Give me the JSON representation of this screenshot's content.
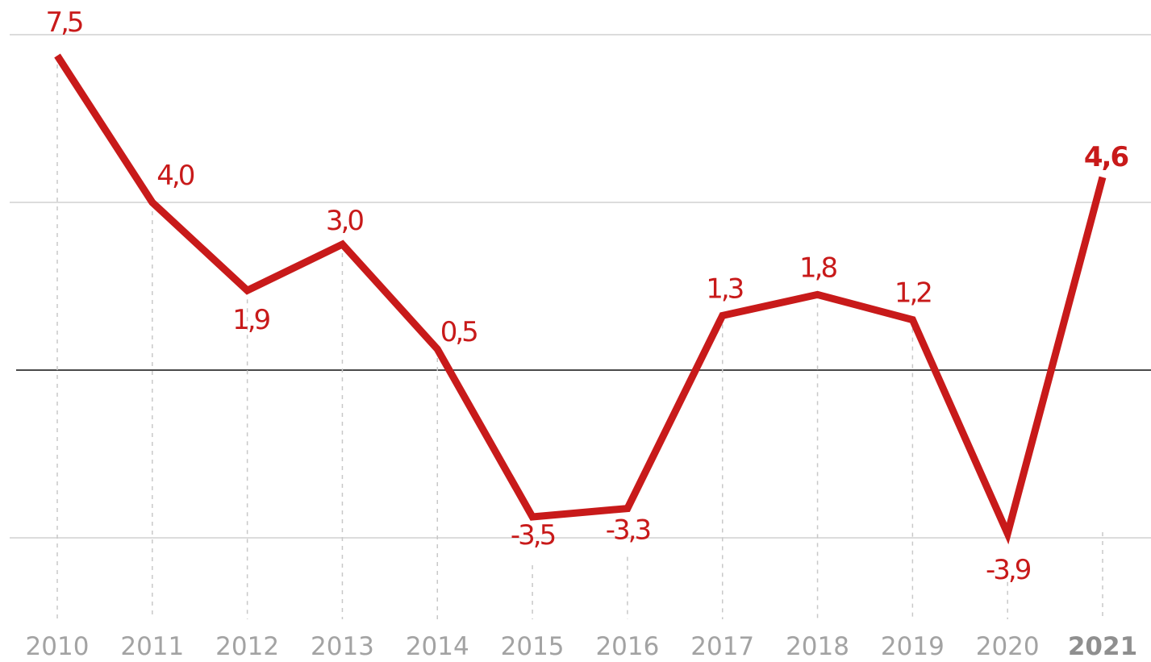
{
  "chart_data": {
    "type": "line",
    "title": "",
    "xlabel": "",
    "ylabel": "",
    "x": [
      "2010",
      "2011",
      "2012",
      "2013",
      "2014",
      "2015",
      "2016",
      "2017",
      "2018",
      "2019",
      "2020",
      "2021"
    ],
    "series": [
      {
        "values": [
          7.5,
          4.0,
          1.9,
          3.0,
          0.5,
          -3.5,
          -3.3,
          1.3,
          1.8,
          1.2,
          -3.9,
          4.6
        ],
        "labels": [
          "7,5",
          "4,0",
          "1,9",
          "3,0",
          "0,5",
          "-3,5",
          "-3,3",
          "1,3",
          "1,8",
          "1,2",
          "-3,9",
          "4,6"
        ]
      }
    ],
    "ylim": [
      -6,
      8
    ],
    "gridlines": [
      -4,
      0,
      4,
      8
    ],
    "highlight_last": true,
    "colors": {
      "line": "#c81a1a",
      "zero_line": "#4a4a4a",
      "grid": "#dcdcdc",
      "tick_text": "#a3a3a3"
    }
  }
}
